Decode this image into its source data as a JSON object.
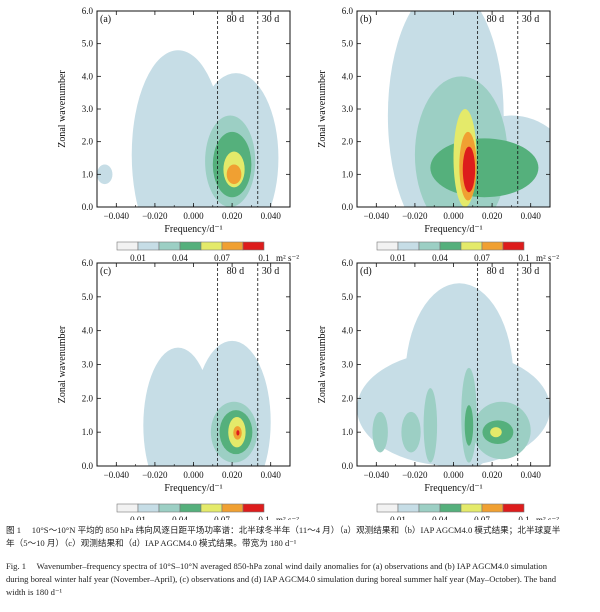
{
  "colors": {
    "levels": [
      "#f2f2f2",
      "#c6dde6",
      "#9ccfc4",
      "#55b07c",
      "#e4ea6a",
      "#f0a032",
      "#dd1c1c"
    ],
    "frame": "#111111"
  },
  "chart_data": [
    {
      "type": "heatmap",
      "panel_label": "(a)",
      "xlabel": "Frequency/d⁻¹",
      "ylabel": "Zonal wavenumber",
      "xlim": [
        -0.05,
        0.05
      ],
      "ylim": [
        0,
        6
      ],
      "xticks": [
        "−0.040",
        "−0.020",
        "0.000",
        "0.020",
        "0.040"
      ],
      "yticks": [
        "0.0",
        "1.0",
        "2.0",
        "3.0",
        "4.0",
        "5.0",
        "6.0"
      ],
      "period_lines": [
        {
          "label": "80 d",
          "x": 0.0125
        },
        {
          "label": "30 d",
          "x": 0.0333
        }
      ],
      "blobs": [
        {
          "x": -0.008,
          "y": 1.6,
          "rx": 0.024,
          "ry": 3.2,
          "level": 1
        },
        {
          "x": 0.022,
          "y": 1.5,
          "rx": 0.022,
          "ry": 2.6,
          "level": 1
        },
        {
          "x": -0.046,
          "y": 1.0,
          "rx": 0.004,
          "ry": 0.3,
          "level": 1
        },
        {
          "x": 0.019,
          "y": 1.4,
          "rx": 0.013,
          "ry": 1.4,
          "level": 2
        },
        {
          "x": 0.02,
          "y": 1.3,
          "rx": 0.01,
          "ry": 1.0,
          "level": 3
        },
        {
          "x": 0.021,
          "y": 1.15,
          "rx": 0.0055,
          "ry": 0.55,
          "level": 4
        },
        {
          "x": 0.021,
          "y": 1.0,
          "rx": 0.0038,
          "ry": 0.3,
          "level": 5
        }
      ]
    },
    {
      "type": "heatmap",
      "panel_label": "(b)",
      "xlabel": "Frequency/d⁻¹",
      "ylabel": "Zonal wavenumber",
      "xlim": [
        -0.05,
        0.05
      ],
      "ylim": [
        0,
        6
      ],
      "xticks": [
        "−0.040",
        "−0.020",
        "0.000",
        "0.020",
        "0.040"
      ],
      "yticks": [
        "0.0",
        "1.0",
        "2.0",
        "3.0",
        "4.0",
        "5.0",
        "6.0"
      ],
      "period_lines": [
        {
          "label": "80 d",
          "x": 0.0125
        },
        {
          "label": "30 d",
          "x": 0.0333
        }
      ],
      "blobs": [
        {
          "x": -0.004,
          "y": 2.8,
          "rx": 0.03,
          "ry": 4.0,
          "level": 1
        },
        {
          "x": 0.03,
          "y": 1.2,
          "rx": 0.03,
          "ry": 1.6,
          "level": 1
        },
        {
          "x": 0.004,
          "y": 1.6,
          "rx": 0.024,
          "ry": 2.4,
          "level": 2
        },
        {
          "x": 0.016,
          "y": 1.2,
          "rx": 0.028,
          "ry": 0.9,
          "level": 3
        },
        {
          "x": 0.006,
          "y": 1.5,
          "rx": 0.006,
          "ry": 1.5,
          "level": 4
        },
        {
          "x": 0.0075,
          "y": 1.25,
          "rx": 0.0045,
          "ry": 1.05,
          "level": 5
        },
        {
          "x": 0.008,
          "y": 1.15,
          "rx": 0.0032,
          "ry": 0.7,
          "level": 6
        }
      ]
    },
    {
      "type": "heatmap",
      "panel_label": "(c)",
      "xlabel": "Frequency/d⁻¹",
      "ylabel": "Zonal wavenumber",
      "xlim": [
        -0.05,
        0.05
      ],
      "ylim": [
        0,
        6
      ],
      "xticks": [
        "−0.040",
        "−0.020",
        "0.000",
        "0.020",
        "0.040"
      ],
      "yticks": [
        "0.0",
        "1.0",
        "2.0",
        "3.0",
        "4.0",
        "5.0",
        "6.0"
      ],
      "period_lines": [
        {
          "label": "80 d",
          "x": 0.0125
        },
        {
          "label": "30 d",
          "x": 0.0333
        }
      ],
      "blobs": [
        {
          "x": -0.008,
          "y": 1.2,
          "rx": 0.018,
          "ry": 2.3,
          "level": 1
        },
        {
          "x": 0.02,
          "y": 1.3,
          "rx": 0.02,
          "ry": 2.4,
          "level": 1
        },
        {
          "x": 0.021,
          "y": 1.0,
          "rx": 0.012,
          "ry": 0.9,
          "level": 2
        },
        {
          "x": 0.022,
          "y": 1.0,
          "rx": 0.0085,
          "ry": 0.65,
          "level": 3
        },
        {
          "x": 0.0225,
          "y": 1.0,
          "rx": 0.0045,
          "ry": 0.45,
          "level": 4
        },
        {
          "x": 0.0228,
          "y": 0.98,
          "rx": 0.0022,
          "ry": 0.2,
          "level": 5
        },
        {
          "x": 0.023,
          "y": 0.98,
          "rx": 0.0008,
          "ry": 0.08,
          "level": 6
        }
      ]
    },
    {
      "type": "heatmap",
      "panel_label": "(d)",
      "xlabel": "Frequency/d⁻¹",
      "ylabel": "Zonal wavenumber",
      "xlim": [
        -0.05,
        0.05
      ],
      "ylim": [
        0,
        6
      ],
      "xticks": [
        "−0.040",
        "−0.020",
        "0.000",
        "0.020",
        "0.040"
      ],
      "yticks": [
        "0.0",
        "1.0",
        "2.0",
        "3.0",
        "4.0",
        "5.0",
        "6.0"
      ],
      "period_lines": [
        {
          "label": "80 d",
          "x": 0.0125
        },
        {
          "label": "30 d",
          "x": 0.0333
        }
      ],
      "blobs": [
        {
          "x": 0.0,
          "y": 1.7,
          "rx": 0.05,
          "ry": 1.7,
          "level": 1
        },
        {
          "x": 0.003,
          "y": 2.6,
          "rx": 0.028,
          "ry": 2.8,
          "level": 1
        },
        {
          "x": -0.038,
          "y": 1.0,
          "rx": 0.004,
          "ry": 0.6,
          "level": 2
        },
        {
          "x": -0.022,
          "y": 1.0,
          "rx": 0.005,
          "ry": 0.6,
          "level": 2
        },
        {
          "x": -0.012,
          "y": 1.2,
          "rx": 0.0035,
          "ry": 1.1,
          "level": 2
        },
        {
          "x": 0.008,
          "y": 1.5,
          "rx": 0.004,
          "ry": 1.4,
          "level": 2
        },
        {
          "x": 0.025,
          "y": 1.05,
          "rx": 0.015,
          "ry": 0.85,
          "level": 2
        },
        {
          "x": 0.008,
          "y": 1.2,
          "rx": 0.0022,
          "ry": 0.6,
          "level": 3
        },
        {
          "x": 0.023,
          "y": 1.0,
          "rx": 0.008,
          "ry": 0.35,
          "level": 3
        },
        {
          "x": 0.022,
          "y": 1.0,
          "rx": 0.003,
          "ry": 0.15,
          "level": 4
        }
      ]
    }
  ],
  "colorbar": {
    "ticks": [
      "0.01",
      "0.04",
      "0.07",
      "0.1"
    ],
    "unit": "m² s⁻²"
  },
  "caption": {
    "cn_line1": "图 1　 10°S～10°N 平均的 850 hPa 纬向风逐日距平场功率谱：北半球冬半年（11～4 月）（a）观测结果和（b）IAP AGCM4.0 模式结果；北半球夏半",
    "cn_line2": "年（5～10 月）（c）观测结果和（d）IAP AGCM4.0 模式结果。带宽为 180 d⁻¹",
    "en_line1": "Fig. 1　 Wavenumber–frequency spectra of 10°S–10°N averaged 850-hPa zonal wind daily anomalies for (a) observations and (b) IAP AGCM4.0 simulation",
    "en_line2": "during boreal winter half year (November–April), (c) observations and (d) IAP AGCM4.0 simulation during boreal summer half year (May–October). The band",
    "en_line3": "width is 180 d⁻¹"
  }
}
